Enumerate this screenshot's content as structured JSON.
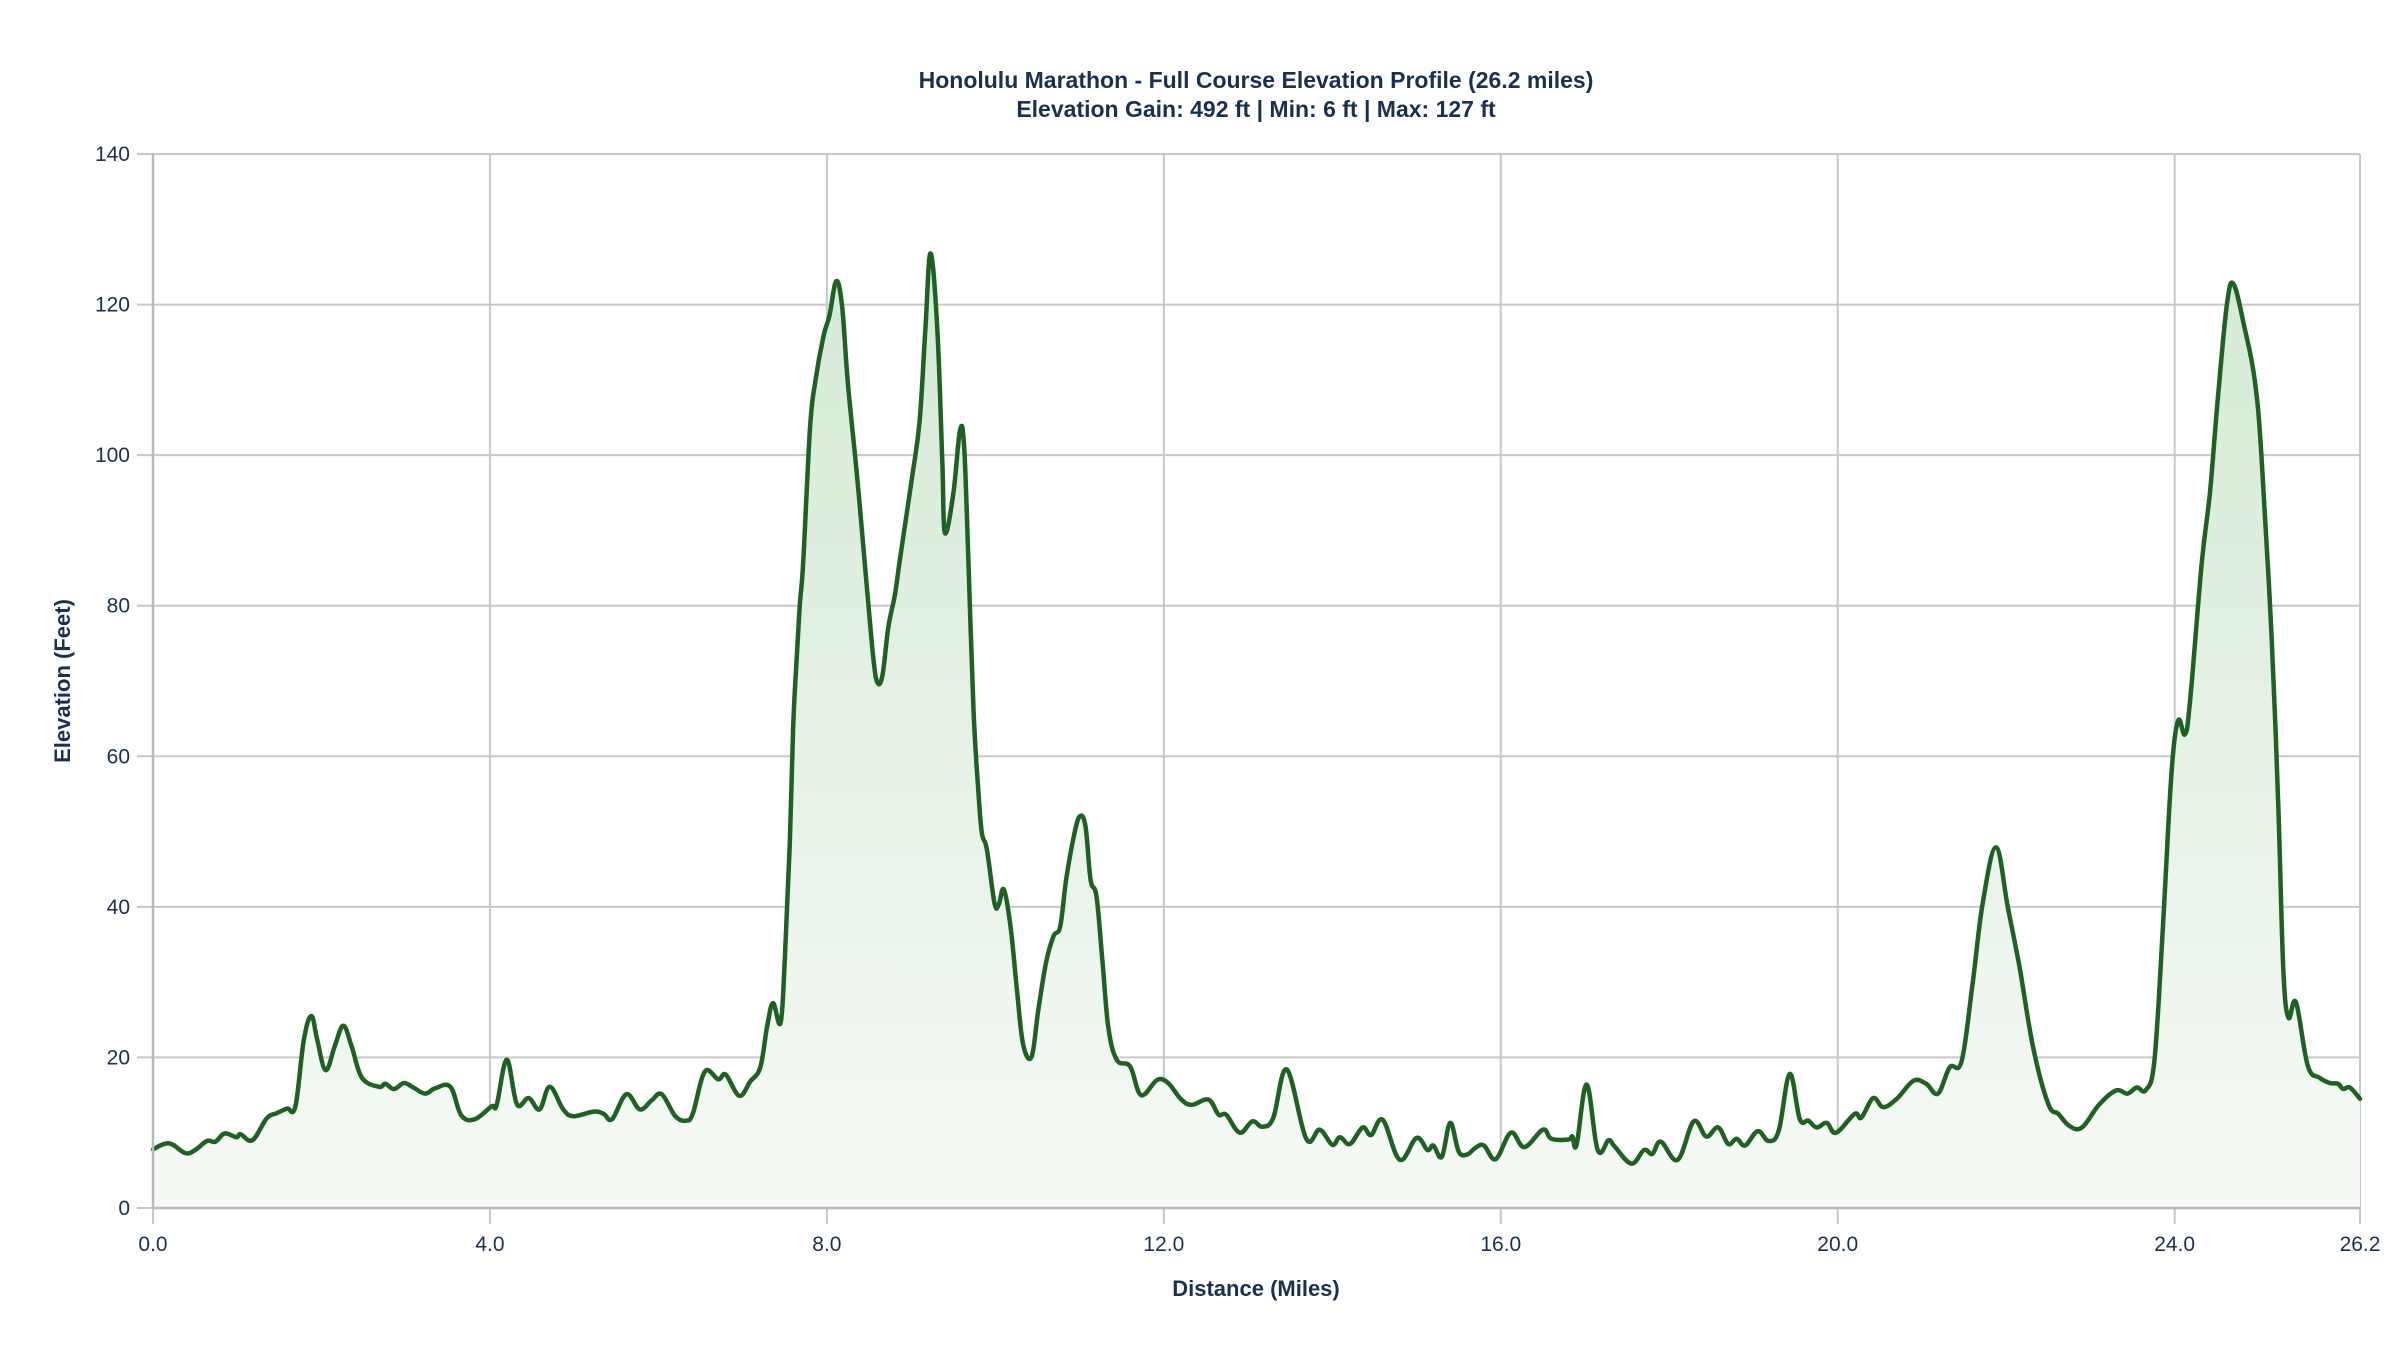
{
  "chart_data": {
    "type": "area",
    "title": "Honolulu Marathon - Full Course Elevation Profile (26.2 miles)",
    "subtitle": "Elevation Gain: 492 ft | Min: 6 ft | Max: 127 ft",
    "xlabel": "Distance (Miles)",
    "ylabel": "Elevation (Feet)",
    "xlim": [
      0,
      26.2
    ],
    "ylim": [
      0,
      140
    ],
    "x_ticks": [
      0,
      4,
      8,
      12,
      16,
      20,
      24,
      26.2
    ],
    "x_tick_labels": [
      "0.0",
      "4.0",
      "8.0",
      "12.0",
      "16.0",
      "20.0",
      "24.0",
      "26.2"
    ],
    "y_ticks": [
      0,
      20,
      40,
      60,
      80,
      100,
      120,
      140
    ],
    "y_tick_labels": [
      "0",
      "20",
      "40",
      "60",
      "80",
      "100",
      "120",
      "140"
    ],
    "grid": true,
    "legend": null,
    "colors": {
      "line": "#1e6123",
      "fill_top": "#d4e9d4",
      "fill_bottom": "#f6faf6",
      "grid": "#c8c8c8",
      "axis": "#b9b9b9",
      "text": "#1a3050"
    },
    "series": [
      {
        "name": "Elevation",
        "x": [
          0.0,
          0.19,
          0.38,
          0.5,
          0.64,
          0.74,
          0.85,
          0.99,
          1.04,
          1.18,
          1.35,
          1.47,
          1.59,
          1.69,
          1.79,
          1.88,
          1.95,
          2.05,
          2.16,
          2.26,
          2.36,
          2.48,
          2.68,
          2.76,
          2.86,
          2.98,
          3.09,
          3.23,
          3.35,
          3.53,
          3.66,
          3.82,
          4.02,
          4.08,
          4.2,
          4.32,
          4.46,
          4.59,
          4.71,
          4.87,
          4.99,
          5.23,
          5.35,
          5.45,
          5.62,
          5.78,
          5.92,
          6.04,
          6.2,
          6.33,
          6.41,
          6.55,
          6.71,
          6.8,
          6.96,
          7.09,
          7.21,
          7.29,
          7.36,
          7.45,
          7.5,
          7.56,
          7.6,
          7.64,
          7.68,
          7.72,
          7.8,
          7.86,
          7.96,
          8.03,
          8.11,
          8.18,
          8.25,
          8.36,
          8.47,
          8.55,
          8.6,
          8.66,
          8.73,
          8.81,
          8.87,
          9.01,
          9.1,
          9.17,
          9.23,
          9.31,
          9.37,
          9.4,
          9.5,
          9.58,
          9.63,
          9.68,
          9.74,
          9.8,
          9.84,
          9.9,
          9.99,
          10.04,
          10.1,
          10.18,
          10.26,
          10.33,
          10.43,
          10.51,
          10.6,
          10.69,
          10.77,
          10.84,
          10.93,
          11.0,
          11.07,
          11.13,
          11.2,
          11.27,
          11.34,
          11.44,
          11.6,
          11.73,
          11.92,
          12.05,
          12.2,
          12.33,
          12.53,
          12.65,
          12.74,
          12.9,
          13.05,
          13.17,
          13.3,
          13.46,
          13.69,
          13.85,
          14.0,
          14.09,
          14.21,
          14.36,
          14.46,
          14.6,
          14.8,
          15.0,
          15.13,
          15.2,
          15.3,
          15.4,
          15.5,
          15.6,
          15.7,
          15.8,
          15.94,
          16.12,
          16.28,
          16.5,
          16.6,
          16.8,
          16.85,
          16.9,
          17.02,
          17.15,
          17.28,
          17.35,
          17.55,
          17.7,
          17.8,
          17.9,
          18.1,
          18.29,
          18.44,
          18.58,
          18.7,
          18.8,
          18.9,
          19.05,
          19.18,
          19.3,
          19.43,
          19.55,
          19.65,
          19.75,
          19.87,
          19.98,
          20.2,
          20.28,
          20.42,
          20.54,
          20.7,
          20.9,
          21.05,
          21.19,
          21.33,
          21.47,
          21.6,
          21.72,
          21.88,
          22.02,
          22.16,
          22.32,
          22.5,
          22.62,
          22.75,
          22.9,
          23.1,
          23.3,
          23.44,
          23.55,
          23.66,
          23.76,
          23.86,
          23.96,
          24.04,
          24.12,
          24.18,
          24.32,
          24.42,
          24.51,
          24.62,
          24.7,
          24.83,
          24.95,
          25.03,
          25.15,
          25.23,
          25.29,
          25.35,
          25.44,
          25.58,
          25.72,
          25.84,
          25.94,
          26.0,
          26.08,
          26.2
        ],
        "values": [
          7.8,
          8.6,
          7.3,
          7.7,
          8.9,
          8.8,
          9.9,
          9.4,
          9.8,
          9.0,
          11.9,
          12.6,
          13.2,
          13.5,
          22.3,
          25.5,
          22.3,
          18.3,
          21.6,
          24.2,
          21.4,
          17.3,
          16.1,
          16.5,
          15.8,
          16.6,
          16.0,
          15.2,
          15.9,
          16.1,
          12.3,
          11.8,
          13.5,
          13.7,
          19.7,
          13.8,
          14.6,
          13.1,
          16.1,
          13.1,
          12.2,
          12.8,
          12.5,
          11.8,
          15.1,
          13.1,
          14.3,
          15.1,
          12.2,
          11.6,
          12.6,
          18.1,
          17.1,
          17.7,
          14.9,
          16.8,
          18.7,
          24.1,
          27.2,
          24.6,
          33,
          48.5,
          64,
          72.8,
          80.3,
          86,
          103.6,
          109.6,
          115.8,
          118.5,
          123.1,
          119.8,
          109.4,
          97,
          83,
          73.2,
          69.8,
          70.8,
          77.2,
          81.6,
          86.4,
          97,
          104.5,
          117,
          126.8,
          117,
          99.2,
          89.7,
          94.8,
          103.3,
          101,
          86,
          66.2,
          55.1,
          49.8,
          47.6,
          40.5,
          40.3,
          42.3,
          37.4,
          28.5,
          21.7,
          20.1,
          26.3,
          32.5,
          36.1,
          37.4,
          43.6,
          49.3,
          52,
          50.7,
          43.6,
          41.4,
          33,
          24.1,
          19.7,
          18.8,
          15,
          17,
          16.6,
          14.5,
          13.7,
          14.4,
          12.4,
          12.4,
          10,
          11.5,
          10.8,
          12,
          18.4,
          9.2,
          10.4,
          8.4,
          9.4,
          8.5,
          10.7,
          9.7,
          11.7,
          6.4,
          9.3,
          7.7,
          8.3,
          6.8,
          11.3,
          7.5,
          7.1,
          8,
          8.3,
          6.5,
          10,
          8.1,
          10.4,
          9.2,
          9.1,
          9.5,
          8.4,
          16.4,
          7.7,
          9,
          8.2,
          5.9,
          7.7,
          7.2,
          8.8,
          6.4,
          11.5,
          9.5,
          10.7,
          8.5,
          9.2,
          8.3,
          10.2,
          8.9,
          10.3,
          17.8,
          11.8,
          11.6,
          10.7,
          11.3,
          10,
          12.5,
          12,
          14.6,
          13.4,
          14.5,
          16.9,
          16.5,
          15.2,
          18.7,
          19.5,
          29.7,
          40.4,
          47.9,
          39.9,
          31.9,
          21.3,
          13.8,
          12.5,
          10.9,
          10.7,
          13.7,
          15.6,
          15.2,
          16,
          15.7,
          19.7,
          37.3,
          57.4,
          64.7,
          62.9,
          67,
          85.5,
          95.2,
          107.2,
          120,
          122.7,
          116.9,
          110,
          100,
          75.9,
          53.4,
          31.7,
          25.3,
          27.3,
          18.9,
          17.3,
          16.6,
          16.5,
          15.8,
          16,
          14.5
        ]
      }
    ]
  }
}
